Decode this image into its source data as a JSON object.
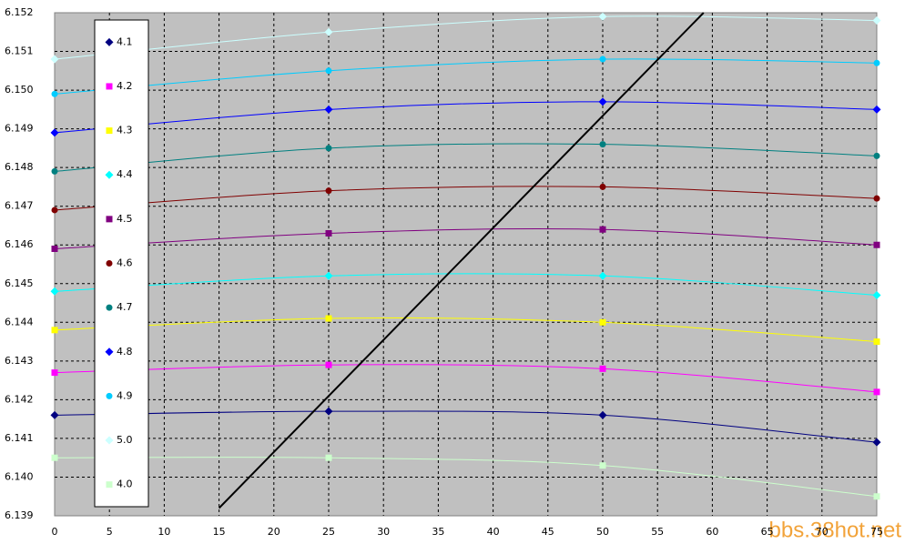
{
  "chart_data": {
    "type": "line",
    "x": [
      0,
      25,
      50,
      75
    ],
    "xlim": [
      0,
      75
    ],
    "xticks": [
      0,
      5,
      10,
      15,
      20,
      25,
      30,
      35,
      40,
      45,
      50,
      55,
      60,
      65,
      70,
      75
    ],
    "ylim": [
      6.139,
      6.152
    ],
    "yticks": [
      6.139,
      {
        "value": 6.14,
        "label": "6.140"
      },
      6.141,
      6.142,
      6.143,
      6.144,
      6.145,
      6.146,
      6.147,
      6.148,
      6.149,
      {
        "value": 6.15,
        "label": "6.150"
      },
      6.151,
      6.152
    ],
    "grid": true,
    "series": [
      {
        "name": "4.1",
        "color": "#000080",
        "marker": "diamond",
        "values": [
          6.1416,
          6.1417,
          6.1416,
          6.1409
        ]
      },
      {
        "name": "4.2",
        "color": "#ff00ff",
        "marker": "square",
        "values": [
          6.1427,
          6.1429,
          6.1428,
          6.1422
        ]
      },
      {
        "name": "4.3",
        "color": "#ffff00",
        "marker": "square",
        "values": [
          6.1438,
          6.1441,
          6.144,
          6.1435
        ]
      },
      {
        "name": "4.4",
        "color": "#00ffff",
        "marker": "diamond",
        "values": [
          6.1448,
          6.1452,
          6.1452,
          6.1447
        ]
      },
      {
        "name": "4.5",
        "color": "#800080",
        "marker": "square",
        "values": [
          6.1459,
          6.1463,
          6.1464,
          6.146
        ]
      },
      {
        "name": "4.6",
        "color": "#800000",
        "marker": "circle",
        "values": [
          6.1469,
          6.1474,
          6.1475,
          6.1472
        ]
      },
      {
        "name": "4.7",
        "color": "#008080",
        "marker": "circle",
        "values": [
          6.1479,
          6.1485,
          6.1486,
          6.1483
        ]
      },
      {
        "name": "4.8",
        "color": "#0000ff",
        "marker": "diamond",
        "values": [
          6.1489,
          6.1495,
          6.1497,
          6.1495
        ]
      },
      {
        "name": "4.9",
        "color": "#00ccff",
        "marker": "circle",
        "values": [
          6.1499,
          6.1505,
          6.1508,
          6.1507
        ]
      },
      {
        "name": "5.0",
        "color": "#ccffff",
        "marker": "diamond",
        "values": [
          6.1508,
          6.1515,
          6.1519,
          6.1518
        ]
      },
      {
        "name": "4.0",
        "color": "#ccffcc",
        "marker": "square",
        "values": [
          6.1405,
          6.1405,
          6.1403,
          6.1395
        ]
      }
    ],
    "line": {
      "x": [
        15,
        59.2
      ],
      "values": [
        6.1392,
        6.152
      ],
      "color": "#000000"
    }
  },
  "watermark": "bbs.38hot.net"
}
